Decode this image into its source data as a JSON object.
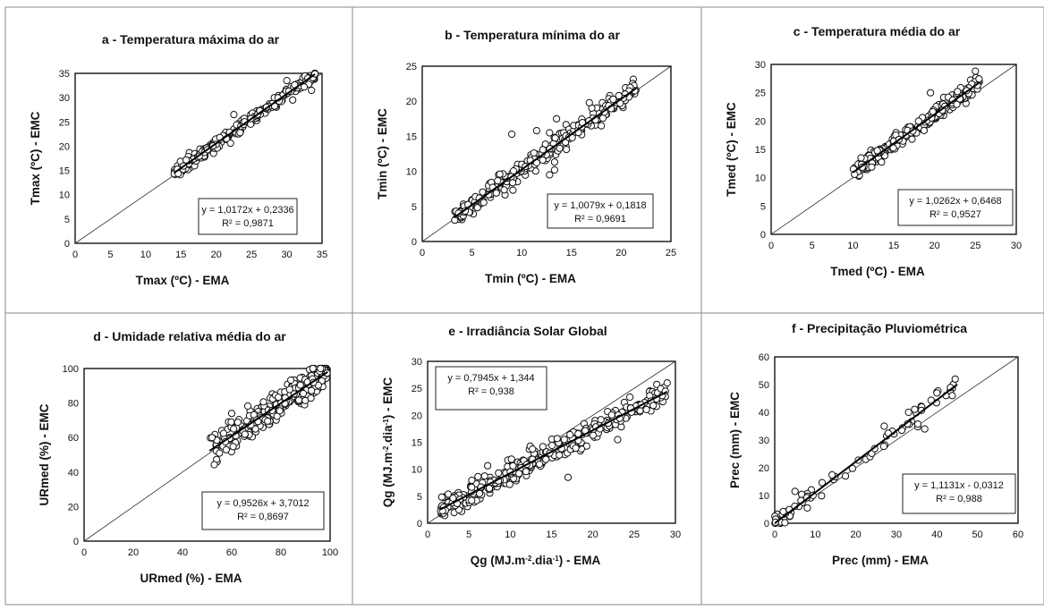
{
  "chart_data": [
    {
      "type": "scatter",
      "title": "a - Temperatura máxima do ar",
      "xlabel": "Tmax (ºC) - EMA",
      "ylabel": "Tmax (ºC) - EMC",
      "xlim": [
        0,
        35
      ],
      "ylim": [
        0,
        35
      ],
      "xticks": [
        0,
        5,
        10,
        15,
        20,
        25,
        30,
        35
      ],
      "yticks": [
        0,
        5,
        10,
        15,
        20,
        25,
        30,
        35
      ],
      "equation": "y = 1,0172x + 0,2336",
      "r2": "R² = 0,9871",
      "slope": 1.0172,
      "intercept": 0.2336,
      "data_range": [
        14,
        34
      ],
      "scatter_sd": 0.6,
      "n_points": 230,
      "outliers": [
        [
          22.5,
          26.5
        ],
        [
          33.5,
          31.5
        ],
        [
          30,
          33.5
        ],
        [
          20.5,
          21.8
        ]
      ],
      "grid": false
    },
    {
      "type": "scatter",
      "title": "b - Temperatura mínima do ar",
      "xlabel": "Tmin (ºC) - EMA",
      "ylabel": "Tmin (ºC) - EMC",
      "xlim": [
        0,
        25
      ],
      "ylim": [
        0,
        25
      ],
      "xticks": [
        0,
        5,
        10,
        15,
        20,
        25
      ],
      "yticks": [
        0,
        5,
        10,
        15,
        20,
        25
      ],
      "equation": "y = 1,0079x + 0,1818",
      "r2": "R² = 0,9691",
      "slope": 1.0079,
      "intercept": 0.1818,
      "data_range": [
        3.2,
        21.5
      ],
      "scatter_sd": 0.75,
      "n_points": 280,
      "outliers": [
        [
          9,
          15.3
        ],
        [
          11.5,
          15.8
        ],
        [
          12.8,
          15.5
        ],
        [
          12.8,
          9.5
        ],
        [
          13.3,
          10.2
        ],
        [
          7.8,
          9.6
        ],
        [
          18,
          16.5
        ],
        [
          13.5,
          17.5
        ],
        [
          16.8,
          19.8
        ]
      ],
      "grid": false
    },
    {
      "type": "scatter",
      "title": "c - Temperatura média do ar",
      "xlabel": "Tmed (ºC) - EMA",
      "ylabel": "Tmed (ºC) - EMC",
      "xlim": [
        0,
        30
      ],
      "ylim": [
        0,
        30
      ],
      "xticks": [
        0,
        5,
        10,
        15,
        20,
        25,
        30
      ],
      "yticks": [
        0,
        5,
        10,
        15,
        20,
        25,
        30
      ],
      "equation": "y = 1,0262x + 0,6468",
      "r2": "R² = 0,9527",
      "slope": 1.0262,
      "intercept": 0.6468,
      "data_range": [
        10,
        25.5
      ],
      "scatter_sd": 0.7,
      "n_points": 280,
      "outliers": [
        [
          25,
          28.8
        ],
        [
          19.5,
          25
        ],
        [
          10.2,
          10.6
        ],
        [
          11,
          13.5
        ]
      ],
      "grid": false
    },
    {
      "type": "scatter",
      "title": "d - Umidade relativa média do ar",
      "xlabel": "URmed (%) - EMA",
      "ylabel": "URmed (%) - EMC",
      "xlim": [
        0,
        100
      ],
      "ylim": [
        0,
        100
      ],
      "xticks": [
        0,
        20,
        40,
        60,
        80,
        100
      ],
      "yticks": [
        0,
        20,
        40,
        60,
        80,
        100
      ],
      "equation": "y = 0,9526x + 3,7012",
      "r2": "R² = 0,8697",
      "slope": 0.9526,
      "intercept": 3.7012,
      "data_range": [
        51,
        99
      ],
      "scatter_sd": 4.2,
      "n_points": 320,
      "outliers": [
        [
          55,
          51
        ],
        [
          52,
          60
        ],
        [
          60,
          74
        ]
      ],
      "grid": false
    },
    {
      "type": "scatter",
      "title": "e - Irradiância Solar Global",
      "xlabel": "Qg (MJ.m-2.dia-1) - EMA",
      "ylabel": "Qg (MJ.m-2.dia-1) - EMC",
      "xlim": [
        0,
        30
      ],
      "ylim": [
        0,
        30
      ],
      "xticks": [
        0,
        5,
        10,
        15,
        20,
        25,
        30
      ],
      "yticks": [
        0,
        5,
        10,
        15,
        20,
        25,
        30
      ],
      "equation": "y = 0,7945x + 1,344",
      "r2": "R² = 0,938",
      "slope": 0.7945,
      "intercept": 1.344,
      "data_range": [
        1.5,
        29
      ],
      "scatter_sd": 1.1,
      "n_points": 360,
      "outliers": [
        [
          17,
          8.5
        ],
        [
          23,
          15.5
        ],
        [
          29,
          26
        ]
      ],
      "grid": false
    },
    {
      "type": "scatter",
      "title": "f - Precipitação Pluviométrica",
      "xlabel": "Prec (mm) - EMA",
      "ylabel": "Prec (mm) - EMC",
      "xlim": [
        0,
        60
      ],
      "ylim": [
        0,
        60
      ],
      "xticks": [
        0,
        10,
        20,
        30,
        40,
        50,
        60
      ],
      "yticks": [
        0,
        10,
        20,
        30,
        40,
        50,
        60
      ],
      "equation": "y = 1,1131x - 0,0312",
      "r2": "R² = 0,988",
      "slope": 1.1131,
      "intercept": -0.0312,
      "data_range": [
        0,
        45
      ],
      "scatter_sd": 1.6,
      "n_points": 75,
      "outliers": [
        [
          5,
          11.5
        ],
        [
          37,
          34
        ],
        [
          33,
          40
        ],
        [
          27,
          35
        ],
        [
          44.5,
          52
        ],
        [
          40,
          47
        ],
        [
          28,
          32.5
        ]
      ],
      "grid": false
    }
  ]
}
